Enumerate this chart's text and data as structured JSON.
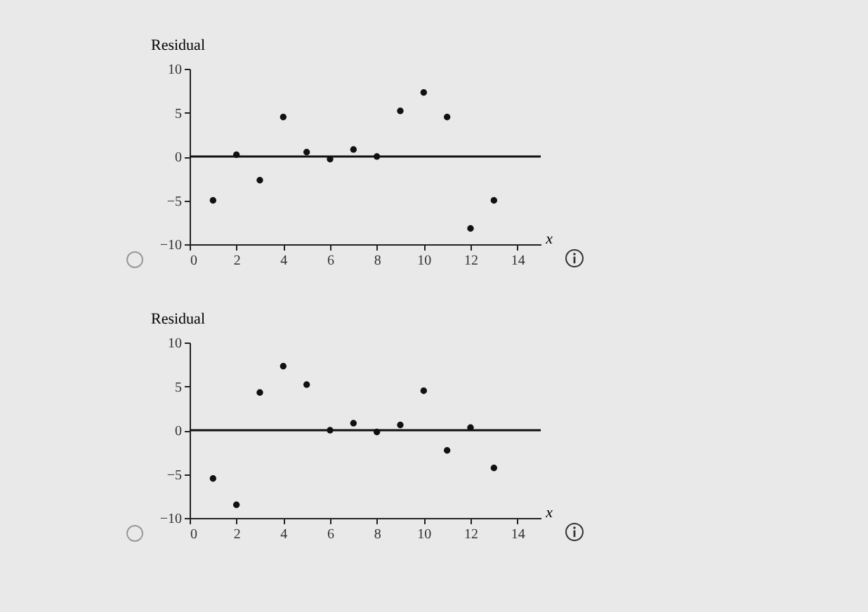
{
  "chart_data": [
    {
      "type": "scatter",
      "ylabel": "Residual",
      "xlabel": "x",
      "x": [
        1,
        2,
        3,
        4,
        5,
        6,
        7,
        8,
        9,
        10,
        11,
        12,
        13
      ],
      "series": [
        {
          "color": "#111111",
          "values": [
            -5,
            0.2,
            -2.7,
            4.5,
            0.5,
            -0.3,
            0.8,
            0,
            5.2,
            7.3,
            4.5,
            -8.2,
            -5
          ]
        }
      ],
      "xlim": [
        0,
        15
      ],
      "ylim": [
        -10,
        10
      ],
      "xticks": [
        0,
        2,
        4,
        6,
        8,
        10,
        12,
        14
      ],
      "yticks": [
        -10,
        -5,
        0,
        5,
        10
      ],
      "grid": false,
      "marker": "circle",
      "ref_lines": [
        {
          "axis": "y",
          "value": 0,
          "color": "#111111"
        }
      ]
    },
    {
      "type": "scatter",
      "ylabel": "Residual",
      "xlabel": "x",
      "x": [
        1,
        2,
        3,
        4,
        5,
        6,
        7,
        8,
        9,
        10,
        11,
        12,
        13
      ],
      "series": [
        {
          "color": "#111111",
          "values": [
            -5.5,
            -8.5,
            4.3,
            7.3,
            5.2,
            0,
            0.8,
            -0.2,
            0.6,
            4.5,
            -2.3,
            0.3,
            -4.3
          ]
        }
      ],
      "xlim": [
        0,
        15
      ],
      "ylim": [
        -10,
        10
      ],
      "xticks": [
        0,
        2,
        4,
        6,
        8,
        10,
        12,
        14
      ],
      "yticks": [
        -10,
        -5,
        0,
        5,
        10
      ],
      "grid": false,
      "marker": "circle",
      "ref_lines": [
        {
          "axis": "y",
          "value": 0,
          "color": "#111111"
        }
      ]
    }
  ]
}
